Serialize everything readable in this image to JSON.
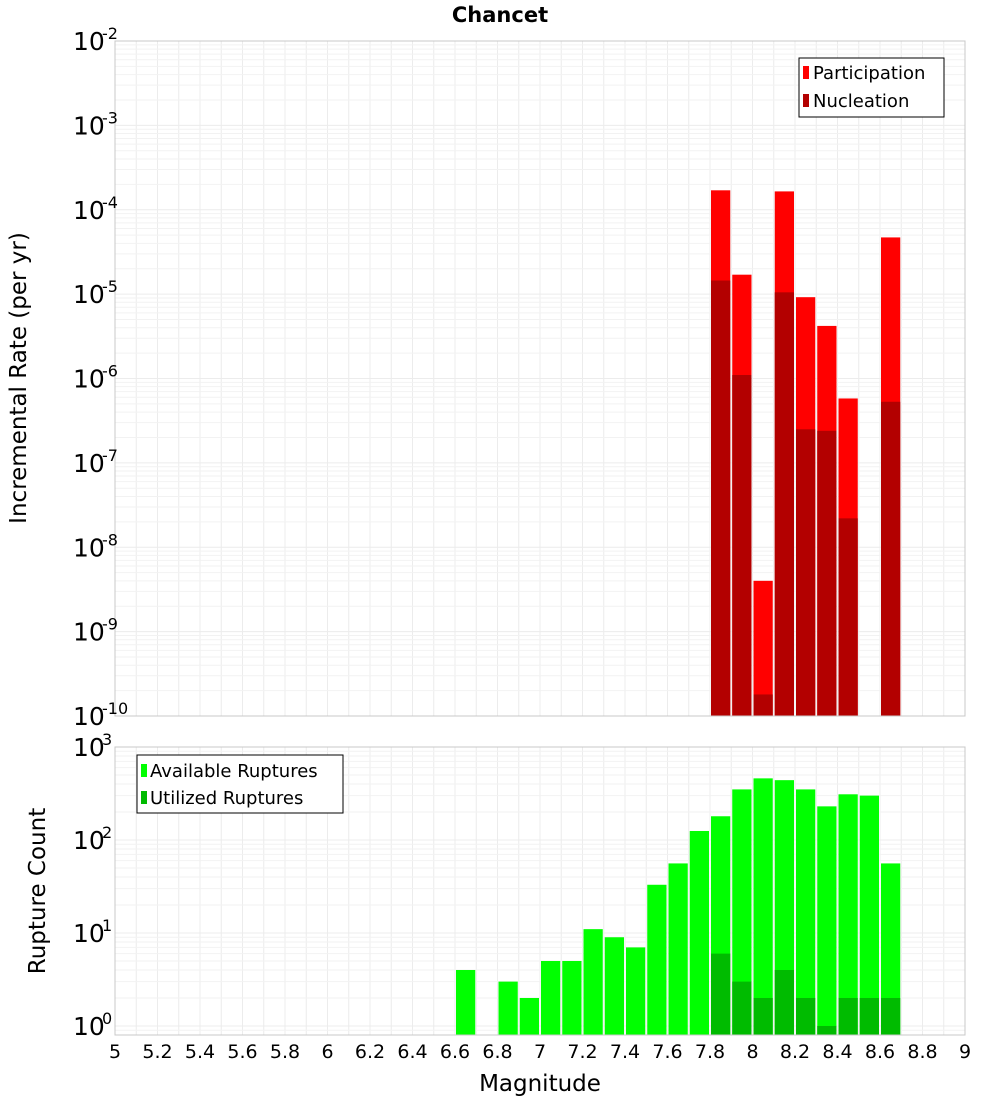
{
  "chart_data": [
    {
      "type": "bar",
      "title": "Chancet",
      "xlabel": "",
      "ylabel": "Incremental Rate (per yr)",
      "yscale": "log",
      "ylim": [
        1e-10,
        0.01
      ],
      "xlim": [
        5,
        9
      ],
      "y_tick_exponents": [
        "-10",
        "-9",
        "-8",
        "-7",
        "-6",
        "-5",
        "-4",
        "-3",
        "-2"
      ],
      "bin_width": 0.1,
      "legend_position": "top-right",
      "series": [
        {
          "name": "Participation",
          "color": "#ff0000",
          "x": [
            7.85,
            7.95,
            8.05,
            8.15,
            8.25,
            8.35,
            8.45,
            8.65
          ],
          "values": [
            0.00017,
            1.7e-05,
            4e-09,
            0.000165,
            9.2e-06,
            4.2e-06,
            5.8e-07,
            4.7e-05
          ]
        },
        {
          "name": "Nucleation",
          "color": "#b30000",
          "x": [
            7.85,
            7.95,
            8.05,
            8.15,
            8.25,
            8.35,
            8.45,
            8.65
          ],
          "values": [
            1.45e-05,
            1.1e-06,
            1.8e-10,
            1.05e-05,
            2.5e-07,
            2.4e-07,
            2.2e-08,
            5.3e-07
          ]
        }
      ]
    },
    {
      "type": "bar",
      "title": "",
      "xlabel": "Magnitude",
      "ylabel": "Rupture Count",
      "yscale": "log",
      "ylim": [
        0.8,
        1000
      ],
      "xlim": [
        5,
        9
      ],
      "y_tick_exponents": [
        "0",
        "1",
        "2",
        "3"
      ],
      "x_ticks": [
        "5",
        "5.2",
        "5.4",
        "5.6",
        "5.8",
        "6",
        "6.2",
        "6.4",
        "6.6",
        "6.8",
        "7",
        "7.2",
        "7.4",
        "7.6",
        "7.8",
        "8",
        "8.2",
        "8.4",
        "8.6",
        "8.8",
        "9"
      ],
      "bin_width": 0.1,
      "legend_position": "top-left",
      "series": [
        {
          "name": "Available Ruptures",
          "color": "#00ff00",
          "x": [
            6.65,
            6.85,
            6.95,
            7.05,
            7.15,
            7.25,
            7.35,
            7.45,
            7.55,
            7.65,
            7.75,
            7.85,
            7.95,
            8.05,
            8.15,
            8.25,
            8.35,
            8.45,
            8.55,
            8.65
          ],
          "values": [
            4,
            3,
            2,
            5,
            5,
            11,
            9,
            7,
            33,
            56,
            125,
            180,
            350,
            460,
            440,
            350,
            230,
            310,
            300,
            56
          ]
        },
        {
          "name": "Utilized Ruptures",
          "color": "#00bb00",
          "x": [
            7.85,
            7.95,
            8.05,
            8.15,
            8.25,
            8.35,
            8.45,
            8.55,
            8.65
          ],
          "values": [
            6,
            3,
            2,
            4,
            2,
            1,
            2,
            2,
            2
          ]
        }
      ]
    }
  ]
}
